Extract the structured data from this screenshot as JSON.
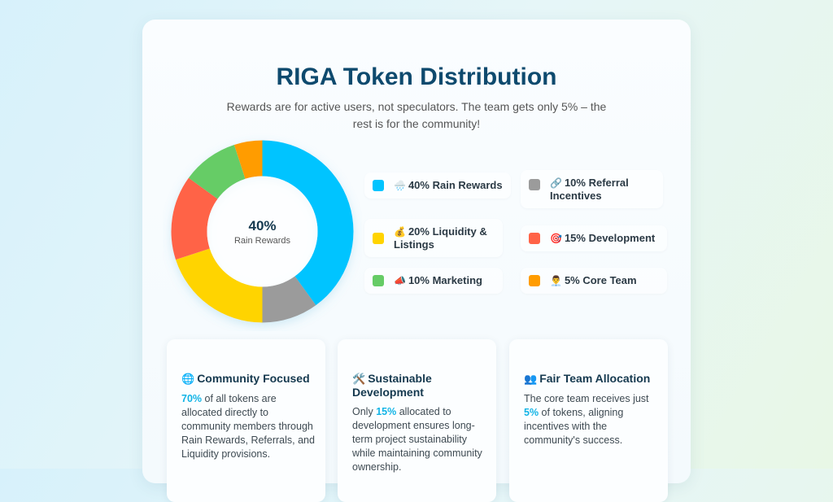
{
  "title": "RIGA Token Distribution",
  "subtitle": "Rewards are for active users, not speculators. The team gets only 5% – the rest is for the community!",
  "chart_data": {
    "type": "pie",
    "donut": true,
    "categories": [
      "Rain Rewards",
      "Referral Incentives",
      "Liquidity & Listings",
      "Development",
      "Marketing",
      "Core Team"
    ],
    "values": [
      40,
      10,
      20,
      15,
      10,
      5
    ],
    "colors": [
      "#00c4ff",
      "#9b9b9b",
      "#ffd400",
      "#ff6347",
      "#66cc66",
      "#ff9c00"
    ],
    "center": {
      "value": "40%",
      "label": "Rain Rewards"
    },
    "legend": [
      {
        "icon": "🌧️",
        "text": "40% Rain Rewards",
        "color": "#00c4ff"
      },
      {
        "icon": "🔗",
        "text": "10% Referral Incentives",
        "color": "#9b9b9b"
      },
      {
        "icon": "💰",
        "text": "20% Liquidity & Listings",
        "color": "#ffd400"
      },
      {
        "icon": "🎯",
        "text": "15% Development",
        "color": "#ff6347"
      },
      {
        "icon": "📣",
        "text": "10% Marketing",
        "color": "#66cc66"
      },
      {
        "icon": "👨‍💼",
        "text": "5% Core Team",
        "color": "#ff9c00"
      }
    ]
  },
  "cards": [
    {
      "icon": "🌐",
      "title": "Community Focused",
      "highlight": "70%",
      "body": " of all tokens are allocated directly to community members through Rain Rewards, Referrals, and Liquidity provisions."
    },
    {
      "icon": "🛠️",
      "title": "Sustainable Development",
      "pre": "Only ",
      "highlight": "15%",
      "body": " allocated to development ensures long-term project sustainability while maintaining community ownership."
    },
    {
      "icon": "👥",
      "title": "Fair Team Allocation",
      "pre": "The core team receives just ",
      "highlight": "5%",
      "body": " of tokens, aligning incentives with the community's success."
    }
  ]
}
